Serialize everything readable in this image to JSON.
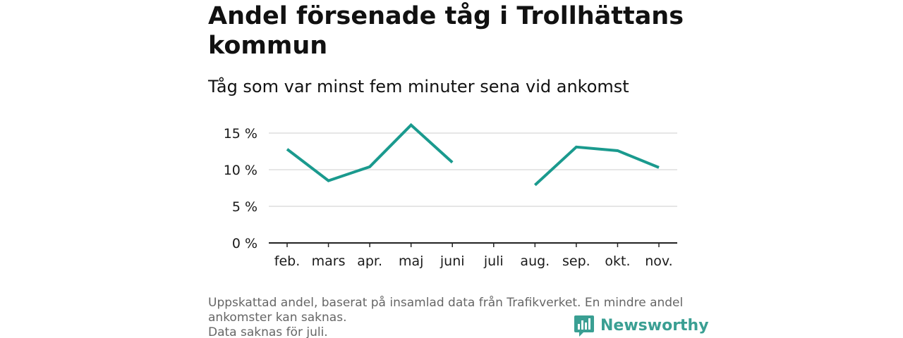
{
  "title": "Andel försenade tåg i Trollhättans kommun",
  "subtitle": "Tåg som var minst fem minuter sena vid ankomst",
  "footnote": {
    "lines": [
      "Uppskattad andel, baserat på insamlad data från Trafikverket. En mindre andel",
      "ankomster kan saknas.",
      "Data saknas för juli."
    ]
  },
  "brand": {
    "name": "Newsworthy",
    "color": "#3a9f93",
    "icon": "bar-chart-speech-bubble-icon"
  },
  "colors": {
    "line": "#1a9a8e",
    "grid": "#dddddd",
    "axis": "#222222"
  },
  "chart_data": {
    "type": "line",
    "categories": [
      "feb.",
      "mars",
      "apr.",
      "maj",
      "juni",
      "juli",
      "aug.",
      "sep.",
      "okt.",
      "nov."
    ],
    "series": [
      {
        "values": [
          12.8,
          8.5,
          10.4,
          16.1,
          11.0,
          null,
          7.9,
          13.1,
          12.6,
          10.3
        ]
      }
    ],
    "ylim": [
      0,
      17
    ],
    "yticks": [
      0,
      5,
      10,
      15
    ],
    "ytick_labels": [
      "0 %",
      "5 %",
      "10 %",
      "15 %"
    ],
    "grid": true,
    "legend": "none",
    "xlabel": "",
    "ylabel": ""
  }
}
